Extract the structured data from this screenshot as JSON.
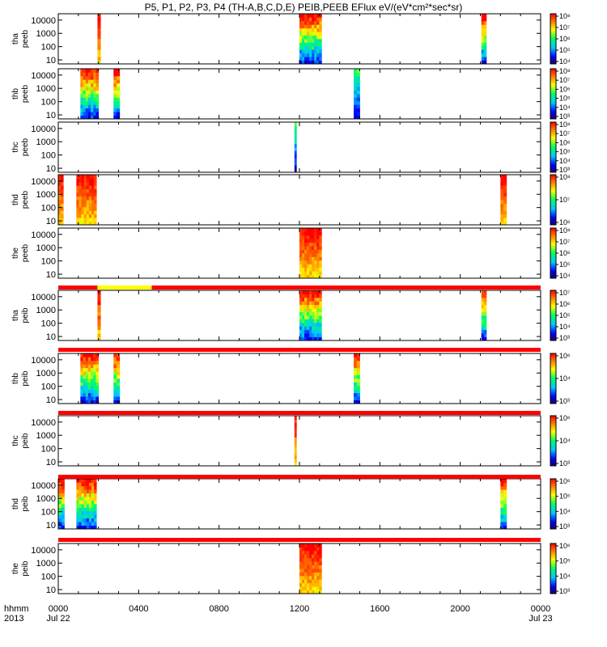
{
  "chart_data": {
    "type": "heatmap",
    "title": "P5, P1, P2, P3, P4 (TH-A,B,C,D,E) PEIB,PEEB EFlux eV/(eV*cm²*sec*sr)",
    "x_axis": {
      "start_label": "hhmm",
      "year_label": "2013",
      "ticks": [
        "0000",
        "0400",
        "0800",
        "1200",
        "1600",
        "2000",
        "0000"
      ],
      "dates": [
        "Jul 22",
        "Jul 23"
      ],
      "range_hours": [
        0,
        24
      ]
    },
    "y_ticks": [
      "10000",
      "1000",
      "100",
      "10"
    ],
    "y_range": [
      5,
      30000
    ],
    "y_scale": "log",
    "panels": [
      {
        "label1": "tha",
        "label2": "peeb",
        "cb_ticks": [
          "10⁸",
          "10⁷",
          "10⁶",
          "10⁵",
          "10⁴"
        ],
        "cb_range": [
          3.5,
          8
        ],
        "intervals": [
          {
            "start": 1.95,
            "end": 2.1,
            "kind": "hot"
          },
          {
            "start": 12.0,
            "end": 13.1,
            "kind": "mixed"
          },
          {
            "start": 21.05,
            "end": 21.3,
            "kind": "mixed"
          }
        ]
      },
      {
        "label1": "thb",
        "label2": "peeb",
        "cb_ticks": [
          "10⁸",
          "10⁷",
          "10⁶",
          "10⁵",
          "10⁴",
          "10³"
        ],
        "cb_range": [
          3,
          8
        ],
        "intervals": [
          {
            "start": 1.1,
            "end": 2.0,
            "kind": "mixed"
          },
          {
            "start": 2.75,
            "end": 3.05,
            "kind": "mixed"
          },
          {
            "start": 14.7,
            "end": 15.0,
            "kind": "cold"
          }
        ]
      },
      {
        "label1": "thc",
        "label2": "peeb",
        "cb_ticks": [
          "10⁸",
          "10⁷",
          "10⁶",
          "10⁵",
          "10⁴",
          "10³"
        ],
        "cb_range": [
          3,
          8
        ],
        "intervals": [
          {
            "start": 11.75,
            "end": 11.85,
            "kind": "cold"
          }
        ]
      },
      {
        "label1": "thd",
        "label2": "peeb",
        "cb_ticks": [
          "10⁸",
          "10⁷",
          "10⁶"
        ],
        "cb_range": [
          5.8,
          8
        ],
        "intervals": [
          {
            "start": 0.0,
            "end": 0.25,
            "kind": "hot"
          },
          {
            "start": 0.9,
            "end": 1.9,
            "kind": "hot"
          },
          {
            "start": 22.0,
            "end": 22.3,
            "kind": "hot"
          }
        ]
      },
      {
        "label1": "the",
        "label2": "peeb",
        "cb_ticks": [
          "10⁸",
          "10⁷",
          "10⁶",
          "10⁵",
          "10⁴"
        ],
        "cb_range": [
          3.5,
          8
        ],
        "intervals": [
          {
            "start": 12.0,
            "end": 13.1,
            "kind": "hot"
          }
        ]
      },
      {
        "label1": "tha",
        "label2": "peib",
        "cb_ticks": [
          "10⁷",
          "10⁶",
          "10⁵",
          "10⁴",
          "10³"
        ],
        "cb_range": [
          2.8,
          7
        ],
        "intervals": [
          {
            "start": 1.95,
            "end": 2.1,
            "kind": "hot"
          },
          {
            "start": 12.0,
            "end": 13.1,
            "kind": "mixed"
          },
          {
            "start": 21.05,
            "end": 21.3,
            "kind": "mixed"
          }
        ]
      },
      {
        "label1": "thb",
        "label2": "peib",
        "cb_ticks": [
          "10⁶",
          "10⁴",
          "10³"
        ],
        "cb_range": [
          2.5,
          6.5
        ],
        "intervals": [
          {
            "start": 1.1,
            "end": 2.0,
            "kind": "mixed"
          },
          {
            "start": 2.75,
            "end": 3.05,
            "kind": "mixed"
          },
          {
            "start": 14.7,
            "end": 15.0,
            "kind": "mixed"
          }
        ]
      },
      {
        "label1": "thc",
        "label2": "peib",
        "cb_ticks": [
          "10⁶",
          "10⁴",
          "10³"
        ],
        "cb_range": [
          2.5,
          6.5
        ],
        "intervals": [
          {
            "start": 11.75,
            "end": 11.85,
            "kind": "hot"
          }
        ]
      },
      {
        "label1": "thd",
        "label2": "peib",
        "cb_ticks": [
          "10⁶",
          "10⁵",
          "10⁴",
          "10³"
        ],
        "cb_range": [
          2.5,
          6.5
        ],
        "intervals": [
          {
            "start": 0.0,
            "end": 0.3,
            "kind": "mixed"
          },
          {
            "start": 0.9,
            "end": 1.9,
            "kind": "mixed"
          },
          {
            "start": 22.0,
            "end": 22.3,
            "kind": "mixed"
          }
        ]
      },
      {
        "label1": "the",
        "label2": "peib",
        "cb_ticks": [
          "10⁶",
          "10⁵",
          "10⁴",
          "10³"
        ],
        "cb_range": [
          2.5,
          6.5
        ],
        "intervals": [
          {
            "start": 12.0,
            "end": 13.1,
            "kind": "hot"
          }
        ]
      }
    ],
    "status_bars": [
      {
        "segments": [
          {
            "start": 0,
            "end": 1.95,
            "color": "#ff0000"
          },
          {
            "start": 1.95,
            "end": 4.65,
            "color": "#ffff00"
          },
          {
            "start": 4.65,
            "end": 24,
            "color": "#ff0000"
          }
        ]
      },
      {
        "segments": [
          {
            "start": 0,
            "end": 24,
            "color": "#ff0000"
          }
        ]
      },
      {
        "segments": [
          {
            "start": 0,
            "end": 24,
            "color": "#ff0000"
          }
        ]
      },
      {
        "segments": [
          {
            "start": 0,
            "end": 24,
            "color": "#ff0000"
          }
        ]
      },
      {
        "segments": [
          {
            "start": 0,
            "end": 24,
            "color": "#ff0000"
          }
        ]
      }
    ]
  }
}
